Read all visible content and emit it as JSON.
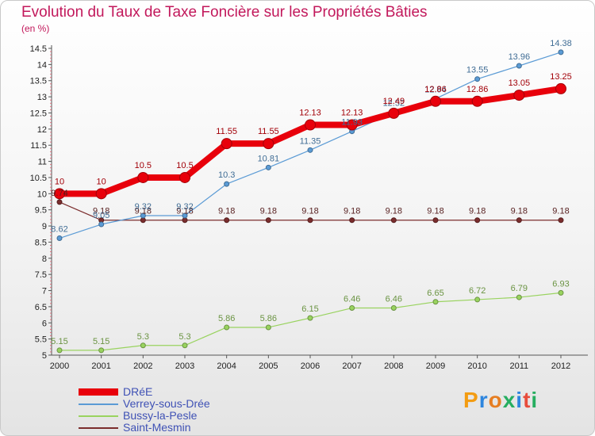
{
  "chart_data": {
    "type": "line",
    "title": "Evolution du Taux de Taxe Foncière sur les Propriétés Bâties",
    "subtitle": "(en %)",
    "xlabel": "",
    "ylabel": "",
    "ylim": [
      5,
      14.5
    ],
    "yticks": [
      "5",
      "5.5",
      "6",
      "6.5",
      "7",
      "7.5",
      "8",
      "8.5",
      "9",
      "9.5",
      "10",
      "10.5",
      "11",
      "11.5",
      "12",
      "12.5",
      "13",
      "13.5",
      "14",
      "14.5"
    ],
    "categories": [
      "2000",
      "2001",
      "2002",
      "2003",
      "2004",
      "2005",
      "2006",
      "2007",
      "2008",
      "2009",
      "2010",
      "2011",
      "2012"
    ],
    "grid": false,
    "legend_position": "bottom-left",
    "series": [
      {
        "name": "DRéE",
        "color": "#e8000b",
        "values": [
          10,
          10,
          10.5,
          10.5,
          11.55,
          11.55,
          12.13,
          12.13,
          12.49,
          12.86,
          12.86,
          13.05,
          13.25
        ],
        "labels": [
          "10",
          "10",
          "10.5",
          "10.5",
          "11.55",
          "11.55",
          "12.13",
          "12.13",
          "12.49",
          "12.86",
          "12.86",
          "13.05",
          "13.25"
        ]
      },
      {
        "name": "Verrey-sous-Drée",
        "color": "#5b9bd5",
        "values": [
          8.62,
          9.05,
          9.32,
          9.32,
          10.3,
          10.81,
          11.35,
          11.93,
          12.52,
          12.94,
          13.55,
          13.96,
          14.38
        ],
        "labels": [
          "8.62",
          "9.05",
          "9.32",
          "9.32",
          "10.3",
          "10.81",
          "11.35",
          "11.93",
          "12.52",
          "12.94",
          "13.55",
          "13.96",
          "14.38"
        ]
      },
      {
        "name": "Bussy-la-Pesle",
        "color": "#99d35f",
        "values": [
          5.15,
          5.15,
          5.3,
          5.3,
          5.86,
          5.86,
          6.15,
          6.46,
          6.46,
          6.65,
          6.72,
          6.79,
          6.93
        ],
        "labels": [
          "5.15",
          "5.15",
          "5.3",
          "5.3",
          "5.86",
          "5.86",
          "6.15",
          "6.46",
          "6.46",
          "6.65",
          "6.72",
          "6.79",
          "6.93"
        ]
      },
      {
        "name": "Saint-Mesmin",
        "color": "#7b2d2d",
        "values": [
          9.74,
          9.18,
          9.18,
          9.18,
          9.18,
          9.18,
          9.18,
          9.18,
          9.18,
          9.18,
          9.18,
          9.18,
          9.18
        ],
        "labels": [
          "9.74",
          "9.18",
          "9.18",
          "9.18",
          "9.18",
          "9.18",
          "9.18",
          "9.18",
          "9.18",
          "9.18",
          "9.18",
          "9.18",
          "9.18"
        ]
      }
    ]
  },
  "logo": {
    "letters": [
      "P",
      "r",
      "o",
      "x",
      "i",
      "t",
      "i"
    ],
    "colors": [
      "#f39c12",
      "#2e86de",
      "#e67e22",
      "#27ae60",
      "#2e86de",
      "#e74c3c",
      "#27ae60"
    ]
  }
}
